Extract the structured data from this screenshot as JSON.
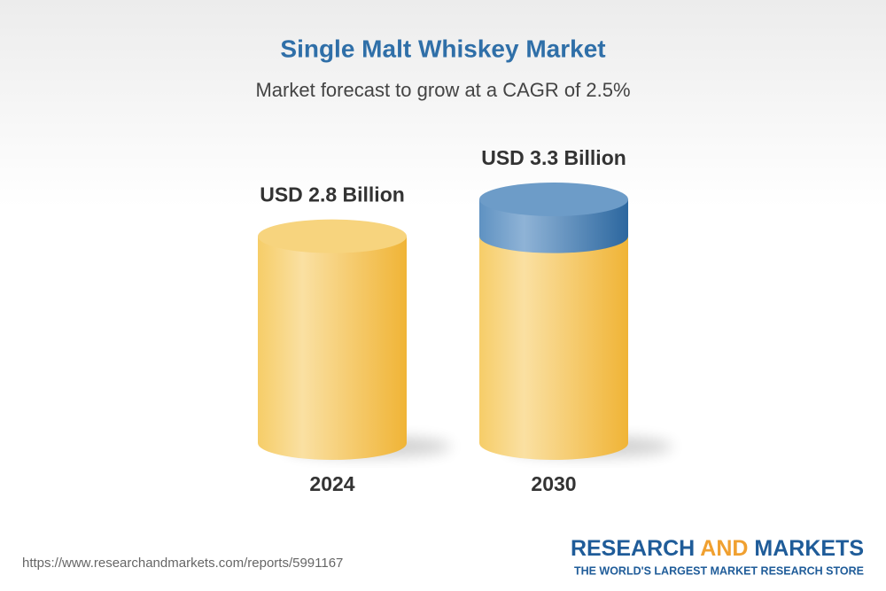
{
  "chart_data": {
    "type": "cylinder",
    "title": "Single Malt Whiskey Market",
    "subtitle": "Market forecast to grow at a CAGR of 2.5%",
    "categories": [
      "2024",
      "2030"
    ],
    "values": [
      2.8,
      3.3
    ],
    "value_labels": [
      "USD 2.8 Billion",
      "USD 3.3 Billion"
    ],
    "color": "#f3bd45",
    "growth_color": "#3f7cb5",
    "source_url": "https://www.researchandmarkets.com/reports/5991167",
    "logo": {
      "name_parts": [
        "RESEARCH",
        "AND",
        "MARKETS"
      ],
      "tagline": "THE WORLD'S LARGEST MARKET RESEARCH STORE"
    }
  }
}
